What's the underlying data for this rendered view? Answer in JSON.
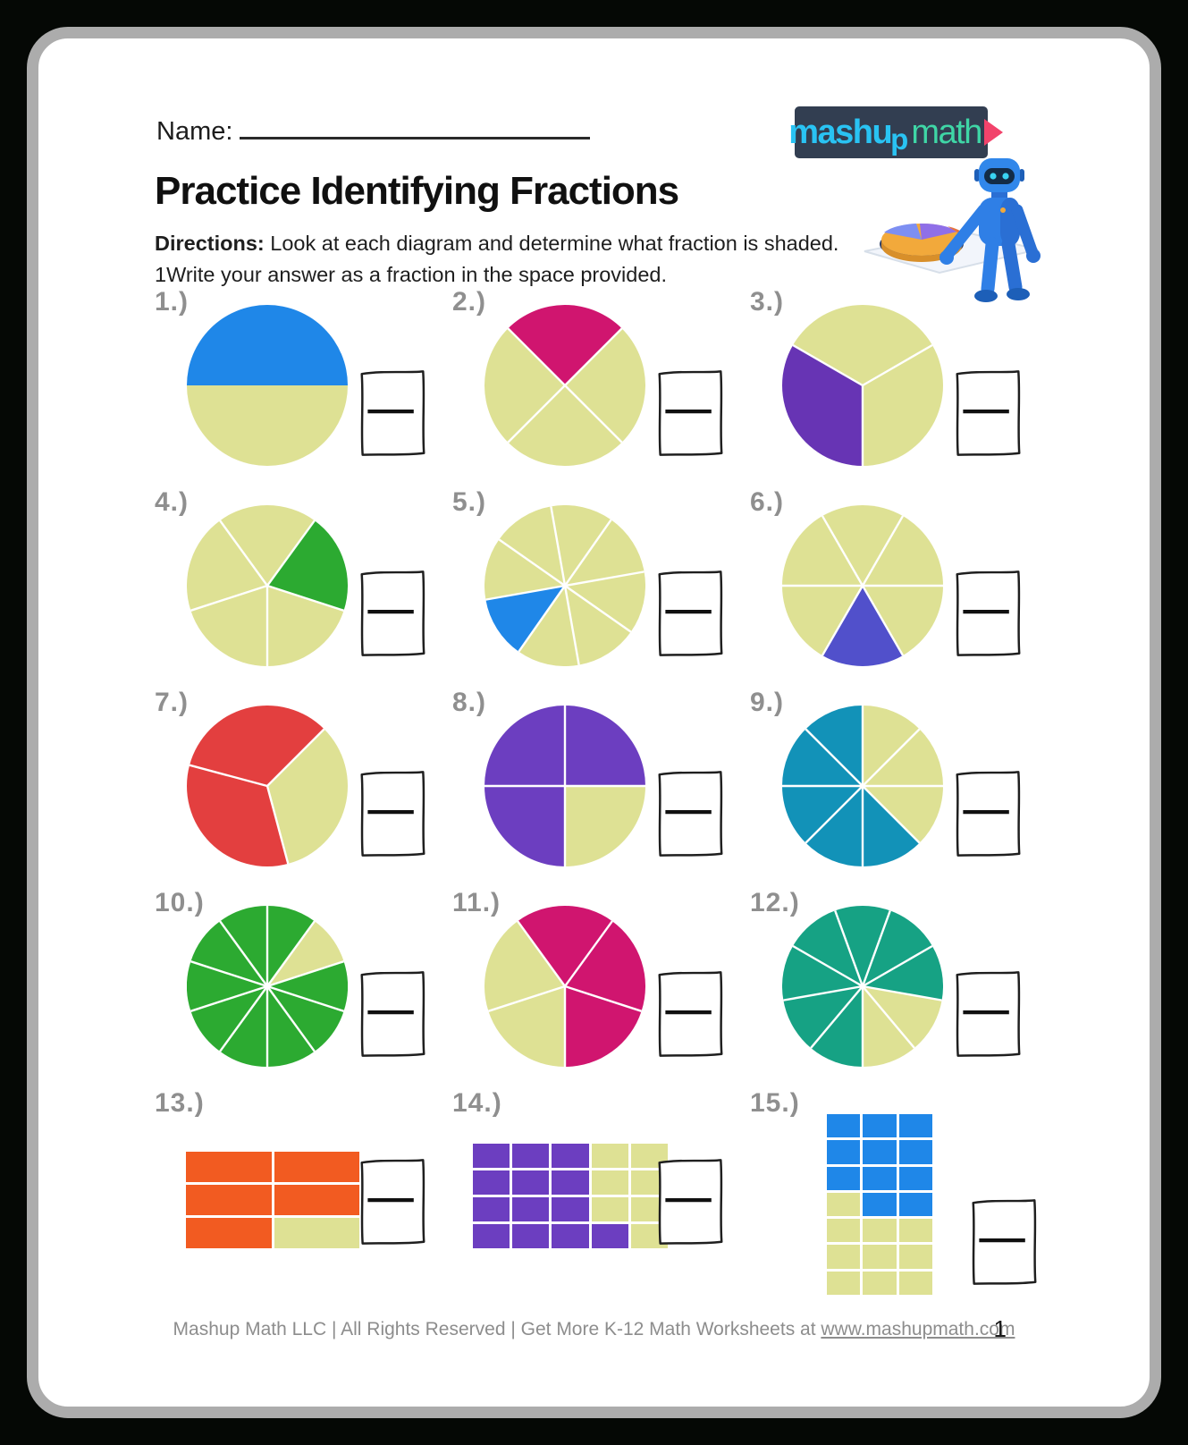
{
  "header": {
    "name_label": "Name:",
    "title": "Practice Identifying Fractions",
    "directions_label": "Directions:",
    "directions_line1": " Look at each diagram and determine what fraction is shaded.",
    "directions_line2": "1Write your answer as a fraction in the space provided."
  },
  "logo": {
    "bold": "mashu",
    "sub": "p",
    "light": "math",
    "background": "#323e51",
    "cyan": "#29c3f3",
    "teal": "#3fd6a6",
    "triangle": "#f2436b"
  },
  "colors": {
    "unshaded": "#dee194",
    "slice_divider": "#ffffff",
    "label_gray": "#8f8f8f",
    "frame_gray": "#acacac",
    "page_background": "#050805"
  },
  "problems": [
    {
      "label": "1.)",
      "type": "pie",
      "parts": 2,
      "start": 270,
      "shaded": [
        0
      ],
      "shaded_count": 1,
      "color": "#1f87e8"
    },
    {
      "label": "2.)",
      "type": "pie",
      "parts": 4,
      "start": 315,
      "shaded": [
        0
      ],
      "shaded_count": 1,
      "color": "#d0156f"
    },
    {
      "label": "3.)",
      "type": "pie",
      "parts": 3,
      "start": 60,
      "shaded": [
        1
      ],
      "shaded_count": 1,
      "color": "#6734b4"
    },
    {
      "label": "4.)",
      "type": "pie",
      "parts": 5,
      "start": 36,
      "shaded": [
        0
      ],
      "shaded_count": 1,
      "color": "#2caa31"
    },
    {
      "label": "5.)",
      "type": "pie",
      "parts": 8,
      "start": 350,
      "shaded": [
        5
      ],
      "shaded_count": 1,
      "color": "#1f87e8"
    },
    {
      "label": "6.)",
      "type": "pie",
      "parts": 6,
      "start": 30,
      "shaded": [
        2
      ],
      "shaded_count": 1,
      "color": "#5150cb"
    },
    {
      "label": "7.)",
      "type": "pie",
      "parts": 3,
      "start": 45,
      "shaded": [
        1,
        2
      ],
      "shaded_count": 2,
      "color": "#e33f3f"
    },
    {
      "label": "8.)",
      "type": "pie",
      "parts": 4,
      "start": 0,
      "shaded": [
        0,
        2,
        3
      ],
      "shaded_count": 3,
      "color": "#6c3ec0"
    },
    {
      "label": "9.)",
      "type": "pie",
      "parts": 8,
      "start": 0,
      "shaded": [
        3,
        4,
        5,
        6,
        7
      ],
      "shaded_count": 5,
      "color": "#1292b8"
    },
    {
      "label": "10.)",
      "type": "pie",
      "parts": 10,
      "start": 0,
      "shaded": [
        0,
        2,
        3,
        4,
        5,
        6,
        7,
        8,
        9
      ],
      "shaded_count": 9,
      "color": "#2caa31"
    },
    {
      "label": "11.)",
      "type": "pie",
      "parts": 5,
      "start": 324,
      "shaded": [
        0,
        1,
        2
      ],
      "shaded_count": 3,
      "color": "#d0156f"
    },
    {
      "label": "12.)",
      "type": "pie",
      "parts": 9,
      "start": 340,
      "shaded": [
        0,
        1,
        2,
        5,
        6,
        7,
        8
      ],
      "shaded_count": 7,
      "color": "#16a284"
    },
    {
      "label": "13.)",
      "type": "grid",
      "cols": 2,
      "rows": 3,
      "parts": 6,
      "shaded": [
        0,
        1,
        2,
        3,
        4
      ],
      "shaded_count": 5,
      "color": "#f25b21"
    },
    {
      "label": "14.)",
      "type": "grid",
      "cols": 5,
      "rows": 4,
      "parts": 20,
      "shaded": [
        0,
        1,
        2,
        5,
        6,
        7,
        10,
        11,
        12,
        15,
        16,
        17,
        18
      ],
      "shaded_count": 13,
      "color": "#6c3ec0"
    },
    {
      "label": "15.)",
      "type": "grid",
      "cols": 3,
      "rows": 7,
      "parts": 21,
      "shaded": [
        0,
        1,
        2,
        3,
        4,
        5,
        6,
        7,
        8,
        10,
        11
      ],
      "shaded_count": 11,
      "color": "#1f87e8"
    }
  ],
  "footer": {
    "text": "Mashup Math LLC | All Rights Reserved | Get More K-12 Math Worksheets at ",
    "link": "www.mashupmath.com",
    "page_number": "1"
  }
}
